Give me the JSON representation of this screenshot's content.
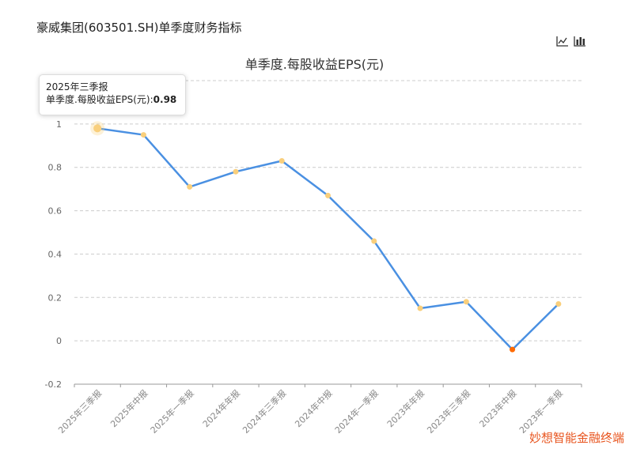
{
  "page_title": "豪威集团(603501.SH)单季度财务指标",
  "toolbar": {
    "icons": [
      "line-chart-icon",
      "bar-chart-icon"
    ]
  },
  "tooltip": {
    "period": "2025年三季报",
    "label": "单季度.每股收益EPS(元):",
    "value": "0.98"
  },
  "watermark": "妙想智能金融终端",
  "colors": {
    "line": "#4a90e2",
    "point": "#f9cf7c",
    "negative_point": "#ff6a00",
    "grid": "#cccccc",
    "watermark": "#e8541e"
  },
  "chart_data": {
    "type": "line",
    "title": "单季度.每股收益EPS(元)",
    "categories": [
      "2025年三季报",
      "2025年中报",
      "2025年一季报",
      "2024年年报",
      "2024年三季报",
      "2024年中报",
      "2024年一季报",
      "2023年年报",
      "2023年三季报",
      "2023年中报",
      "2023年一季报"
    ],
    "series": [
      {
        "values": [
          0.98,
          0.95,
          0.71,
          0.78,
          0.83,
          0.67,
          0.46,
          0.15,
          0.18,
          -0.04,
          0.17
        ]
      }
    ],
    "yticks": [
      "-0.2",
      "0",
      "0.2",
      "0.4",
      "0.6",
      "0.8",
      "1"
    ],
    "ylim": [
      -0.2,
      1.2
    ],
    "grid": true,
    "highlight_index": 0
  }
}
